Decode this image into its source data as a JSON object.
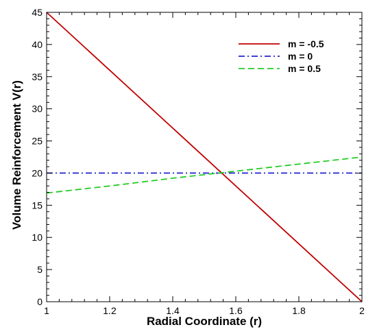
{
  "chart_data": {
    "type": "line",
    "xlabel": "Radial Coordinate (r)",
    "ylabel": "Volume Reinforcement V(r)",
    "xlim": [
      1,
      2
    ],
    "ylim": [
      0,
      45
    ],
    "xticks": [
      1,
      1.2,
      1.4,
      1.6,
      1.8,
      2
    ],
    "yticks": [
      0,
      5,
      10,
      15,
      20,
      25,
      30,
      35,
      40,
      45
    ],
    "grid": false,
    "legend_position": "top-right",
    "series": [
      {
        "name": "m = -0.5",
        "color": "#c00000",
        "style": "solid",
        "x": [
          1,
          2
        ],
        "y": [
          45,
          0
        ]
      },
      {
        "name": "m = 0",
        "color": "#2020d0",
        "style": "dashdot",
        "x": [
          1,
          2
        ],
        "y": [
          20,
          20
        ]
      },
      {
        "name": "m = 0.5",
        "color": "#22cc22",
        "style": "dashed",
        "x": [
          1,
          1.2,
          1.4,
          1.6,
          1.8,
          2
        ],
        "y": [
          16.9,
          18.0,
          19.2,
          20.3,
          21.4,
          22.5
        ]
      }
    ]
  }
}
